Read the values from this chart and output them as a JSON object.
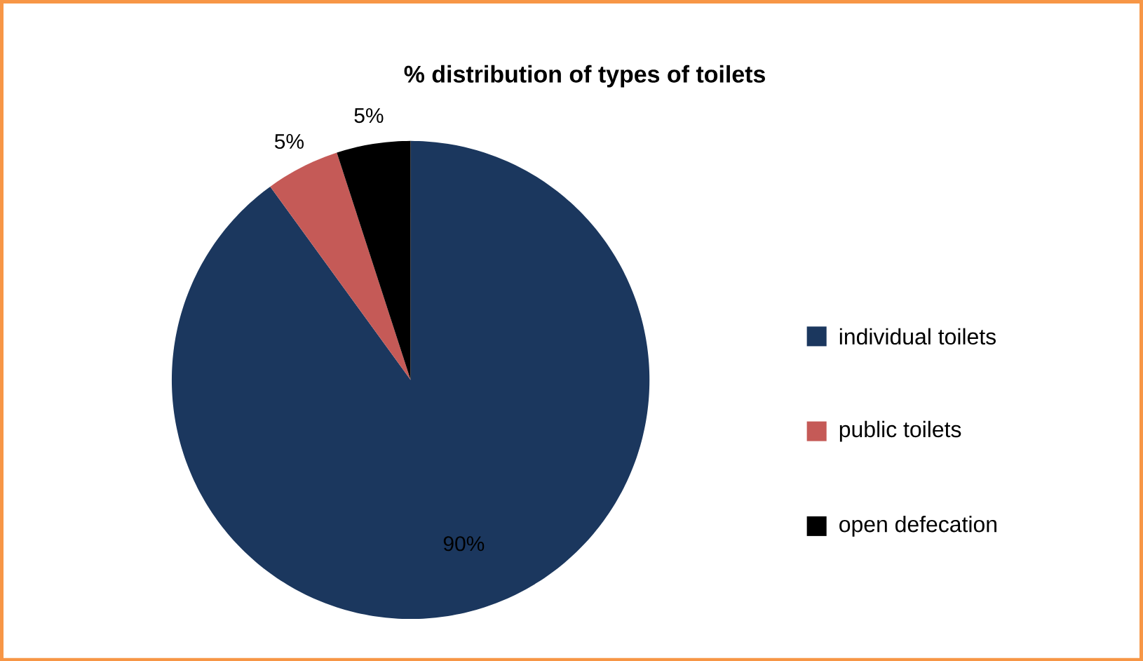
{
  "chart_data": {
    "type": "pie",
    "title": "% distribution of types of toilets",
    "categories": [
      "individual toilets",
      "public toilets",
      "open defecation"
    ],
    "values": [
      90,
      5,
      5
    ],
    "colors": [
      "#1b375e",
      "#c55a57",
      "#000000"
    ],
    "value_labels": [
      "90%",
      "5%",
      "5%"
    ],
    "legend": "right"
  }
}
